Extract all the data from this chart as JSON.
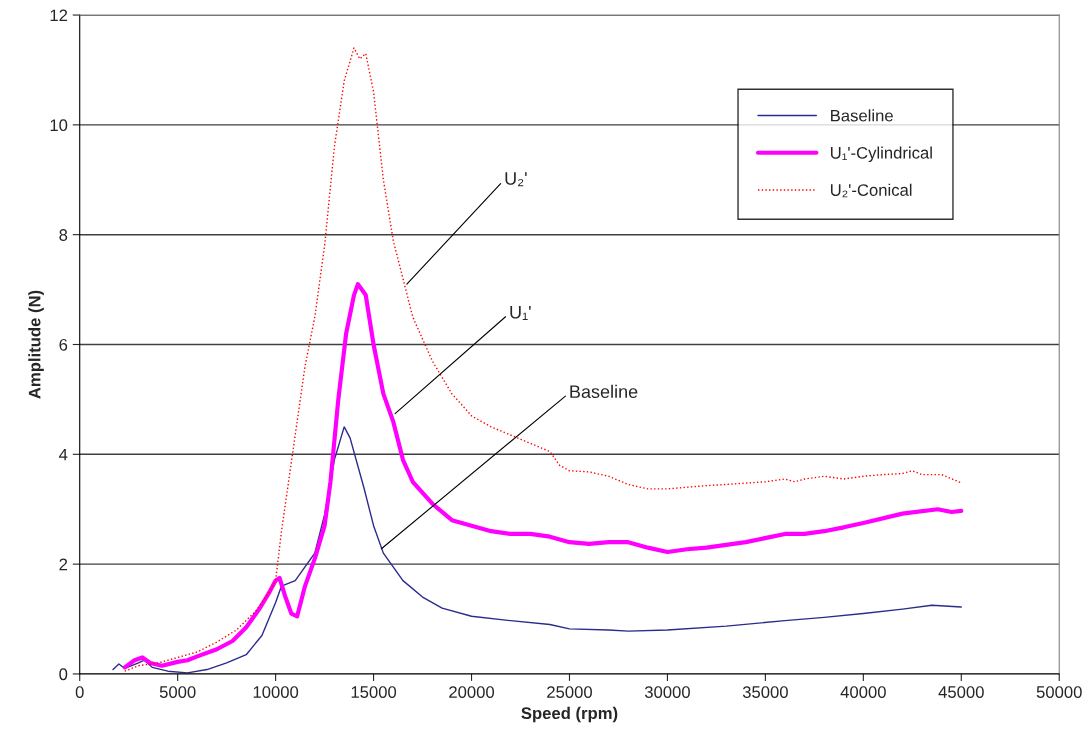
{
  "chart_data": {
    "type": "line",
    "xlabel": "Speed (rpm)",
    "ylabel": "Amplitude (N)",
    "xlim": [
      0,
      50000
    ],
    "xticks": [
      0,
      5000,
      10000,
      15000,
      20000,
      25000,
      30000,
      35000,
      40000,
      45000,
      50000
    ],
    "ylim": [
      0,
      12
    ],
    "yticks": [
      0,
      2,
      4,
      6,
      8,
      10,
      12
    ],
    "grid": "y",
    "legend": "top right",
    "series": [
      {
        "name": "Baseline",
        "color": "#2b2b8c",
        "line_style": "solid",
        "x": [
          1700,
          2000,
          2300,
          3000,
          3300,
          3700,
          4500,
          5500,
          6500,
          7500,
          8500,
          9300,
          10000,
          10300,
          11000,
          11500,
          12000,
          12500,
          13000,
          13500,
          13800,
          14500,
          15000,
          15500,
          16500,
          17500,
          18500,
          20000,
          22000,
          24000,
          25000,
          27000,
          28000,
          30000,
          33000,
          36000,
          38000,
          40000,
          42000,
          43500,
          45000
        ],
        "values": [
          0.08,
          0.18,
          0.1,
          0.2,
          0.25,
          0.12,
          0.05,
          0.02,
          0.08,
          0.2,
          0.35,
          0.7,
          1.3,
          1.6,
          1.7,
          1.95,
          2.2,
          2.9,
          3.9,
          4.5,
          4.3,
          3.4,
          2.7,
          2.2,
          1.7,
          1.4,
          1.2,
          1.05,
          0.97,
          0.9,
          0.82,
          0.8,
          0.78,
          0.8,
          0.87,
          0.97,
          1.03,
          1.1,
          1.18,
          1.25,
          1.22
        ]
      },
      {
        "name": "U₁'-Cylindrical",
        "color": "#ff00ff",
        "line_style": "solid",
        "x": [
          2300,
          2800,
          3200,
          3600,
          4200,
          5000,
          5500,
          6000,
          7000,
          7800,
          8500,
          9200,
          9700,
          10000,
          10200,
          10500,
          10800,
          11100,
          11500,
          12000,
          12500,
          12800,
          13200,
          13600,
          14000,
          14200,
          14600,
          15000,
          15500,
          16000,
          16500,
          17000,
          18000,
          19000,
          20000,
          21000,
          22000,
          23000,
          24000,
          25000,
          26000,
          27000,
          28000,
          29000,
          30000,
          31000,
          32000,
          34000,
          36000,
          37000,
          38000,
          39000,
          40000,
          42000,
          43800,
          44500,
          45000
        ],
        "values": [
          0.12,
          0.25,
          0.3,
          0.2,
          0.15,
          0.22,
          0.25,
          0.32,
          0.45,
          0.6,
          0.85,
          1.2,
          1.5,
          1.7,
          1.75,
          1.4,
          1.1,
          1.05,
          1.6,
          2.1,
          2.7,
          3.5,
          5.0,
          6.2,
          6.9,
          7.1,
          6.9,
          6.0,
          5.1,
          4.6,
          3.9,
          3.5,
          3.1,
          2.8,
          2.7,
          2.6,
          2.55,
          2.55,
          2.5,
          2.4,
          2.37,
          2.4,
          2.4,
          2.3,
          2.22,
          2.27,
          2.3,
          2.4,
          2.55,
          2.55,
          2.6,
          2.67,
          2.75,
          2.92,
          3.0,
          2.95,
          2.97
        ]
      },
      {
        "name": "U₂'-Conical",
        "color": "#ff0000",
        "line_style": "dotted",
        "x": [
          2300,
          3000,
          4000,
          5000,
          6000,
          7000,
          8000,
          9000,
          9700,
          10000,
          10300,
          10700,
          11100,
          11500,
          12000,
          12500,
          13000,
          13500,
          14000,
          14300,
          14600,
          15000,
          15500,
          16000,
          16500,
          17000,
          18000,
          19000,
          20000,
          21000,
          22000,
          23000,
          24000,
          24500,
          25000,
          26000,
          27000,
          28000,
          29000,
          30000,
          31000,
          32000,
          33000,
          35000,
          36000,
          36500,
          37000,
          38000,
          39000,
          40000,
          41000,
          42000,
          42500,
          43000,
          44000,
          45000
        ],
        "values": [
          0.05,
          0.15,
          0.2,
          0.3,
          0.4,
          0.58,
          0.8,
          1.15,
          1.5,
          1.7,
          2.6,
          3.6,
          4.6,
          5.6,
          6.5,
          7.8,
          9.6,
          10.8,
          11.4,
          11.2,
          11.3,
          10.6,
          9.0,
          7.9,
          7.2,
          6.5,
          5.7,
          5.1,
          4.7,
          4.5,
          4.35,
          4.2,
          4.05,
          3.8,
          3.7,
          3.68,
          3.6,
          3.45,
          3.37,
          3.37,
          3.4,
          3.43,
          3.45,
          3.5,
          3.55,
          3.5,
          3.55,
          3.6,
          3.55,
          3.6,
          3.63,
          3.65,
          3.7,
          3.63,
          3.63,
          3.48
        ]
      }
    ],
    "annotations": [
      {
        "text": "U₂'",
        "x": 16700,
        "y": 7.1
      },
      {
        "text": "U₁'",
        "x": 16100,
        "y": 4.74
      },
      {
        "text": "Baseline",
        "x": 15400,
        "y": 2.28
      }
    ]
  }
}
